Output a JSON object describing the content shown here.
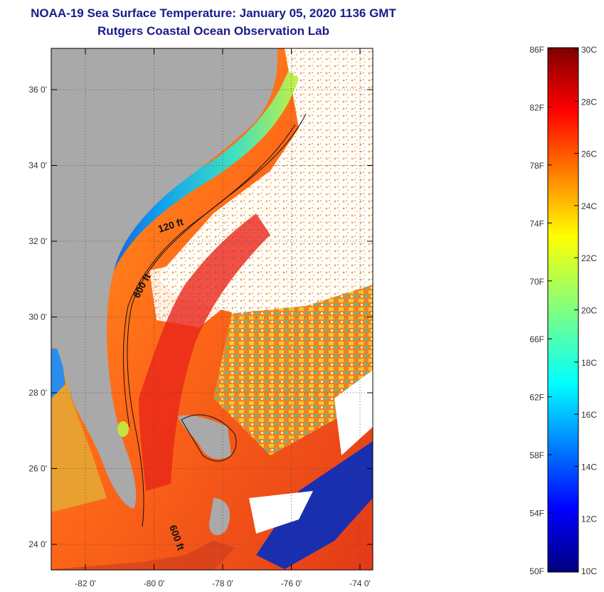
{
  "header": {
    "title": "NOAA-19 Sea Surface Temperature:  January 05, 2020 1136 GMT",
    "subtitle": "Rutgers Coastal Ocean Observation Lab"
  },
  "map": {
    "lat_labels": [
      "36 0'",
      "34 0'",
      "32 0'",
      "30 0'",
      "28 0'",
      "26 0'",
      "24 0'"
    ],
    "lon_labels": [
      "-82 0'",
      "-80 0'",
      "-78 0'",
      "-76 0'",
      "-74 0'"
    ],
    "contour_labels": [
      "120 ft",
      "600 ft",
      "600 ft"
    ],
    "colors": {
      "land": "#a9a9a9",
      "cloud": "#ffffff",
      "cold_coastal": "#1e5bd6",
      "warm_stream": "#e8321a"
    }
  },
  "colorbar": {
    "fahrenheit_labels": [
      "86F",
      "82F",
      "78F",
      "74F",
      "70F",
      "66F",
      "62F",
      "58F",
      "54F",
      "50F"
    ],
    "celsius_labels": [
      "30C",
      "28C",
      "26C",
      "24C",
      "22C",
      "20C",
      "18C",
      "16C",
      "14C",
      "12C",
      "10C"
    ],
    "range_f": [
      50,
      86
    ],
    "range_c": [
      10,
      30
    ]
  }
}
